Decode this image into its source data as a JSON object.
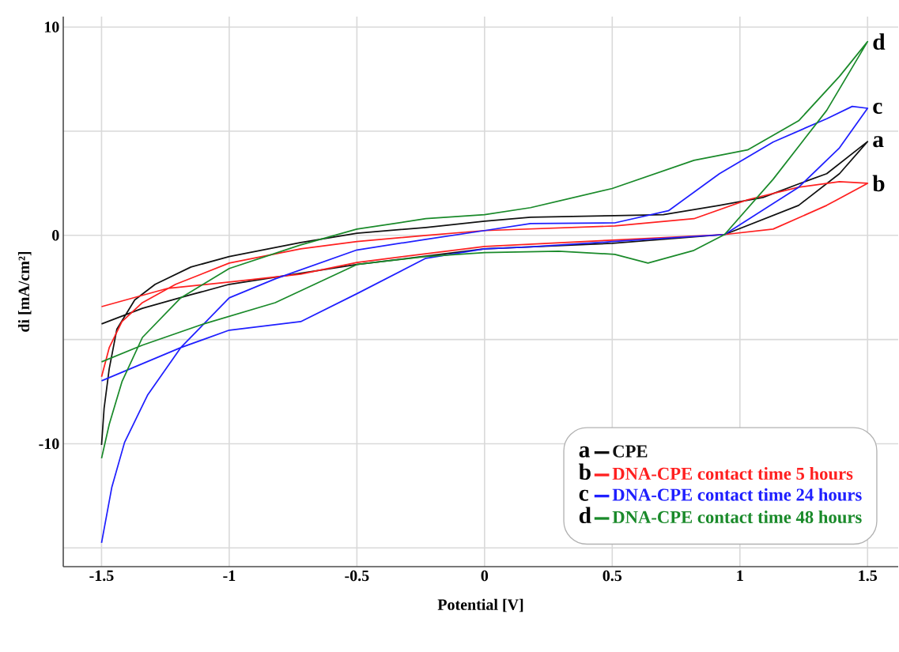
{
  "chart_data": {
    "type": "line",
    "xlabel": "Potential [V]",
    "ylabel": "di [mA/cm²]",
    "xlim": [
      -1.65,
      1.62
    ],
    "ylim": [
      -15.9,
      10.5
    ],
    "xticks": [
      -1.5,
      -1,
      -0.5,
      0,
      0.5,
      1,
      1.5
    ],
    "yticks": [
      {
        "value": -15,
        "label": null
      },
      -10,
      {
        "value": -5,
        "label": null
      },
      0,
      {
        "value": 5,
        "label": null
      },
      10
    ],
    "grid": true,
    "legend": "bottom right",
    "marker": "none",
    "line_style": "solid",
    "series": [
      {
        "name": "CPE",
        "color": "#111111",
        "x": [
          -1.5,
          -1.34,
          -1.15,
          -1,
          -0.5,
          0,
          0.5,
          0.94,
          1.23,
          1.39,
          1.5,
          1.34,
          1.23,
          1.09,
          0.92,
          0.7,
          0.51,
          0.18,
          0,
          -0.23,
          -0.5,
          -0.72,
          -1,
          -1.15,
          -1.29,
          -1.37,
          -1.44,
          -1.47,
          -1.49,
          -1.5
        ],
        "values": [
          -4.25,
          -3.5,
          -2.85,
          -2.35,
          -1.4,
          -0.65,
          -0.38,
          0.04,
          1.44,
          2.96,
          4.5,
          2.96,
          2.47,
          1.82,
          1.44,
          0.99,
          0.95,
          0.87,
          0.68,
          0.38,
          0.1,
          -0.34,
          -1.02,
          -1.52,
          -2.35,
          -3.1,
          -4.5,
          -6.4,
          -8.3,
          -10.06
        ]
      },
      {
        "name": "DNA-CPE contact time 5 hours",
        "color": "#ff2020",
        "x": [
          -1.5,
          -1.24,
          -1,
          -0.72,
          -0.5,
          0,
          0.5,
          0.94,
          1.13,
          1.34,
          1.5,
          1.39,
          1.23,
          1.03,
          0.82,
          0.51,
          0,
          -0.23,
          -0.5,
          -0.72,
          -1,
          -1.21,
          -1.34,
          -1.42,
          -1.47,
          -1.5
        ],
        "values": [
          -3.42,
          -2.54,
          -2.24,
          -1.86,
          -1.3,
          -0.53,
          -0.23,
          0.04,
          0.3,
          1.44,
          2.5,
          2.58,
          2.31,
          1.71,
          0.8,
          0.45,
          0.23,
          0,
          -0.3,
          -0.65,
          -1.33,
          -2.35,
          -3.23,
          -4.14,
          -5.39,
          -6.79
        ]
      },
      {
        "name": "DNA-CPE contact time 24 hours",
        "color": "#1f1fff",
        "x": [
          -1.5,
          -1.19,
          -1,
          -0.72,
          -0.5,
          -0.23,
          0,
          0.18,
          0.5,
          0.94,
          1.23,
          1.39,
          1.5,
          1.44,
          1.34,
          1.13,
          0.92,
          0.72,
          0.51,
          0.18,
          0,
          -0.23,
          -0.5,
          -0.82,
          -1,
          -1.19,
          -1.32,
          -1.41,
          -1.46,
          -1.5
        ],
        "values": [
          -6.98,
          -5.39,
          -4.55,
          -4.14,
          -2.8,
          -1.1,
          -0.65,
          -0.55,
          -0.3,
          0.04,
          2.31,
          4.2,
          6.1,
          6.19,
          5.6,
          4.48,
          2.96,
          1.18,
          0.6,
          0.57,
          0.23,
          -0.19,
          -0.7,
          -2.09,
          -3.0,
          -5.39,
          -7.67,
          -9.94,
          -12.1,
          -14.76
        ]
      },
      {
        "name": "DNA-CPE contact time 48 hours",
        "color": "#1a8a2a",
        "x": [
          -1.5,
          -1.34,
          -1.1,
          -0.82,
          -0.5,
          -0.23,
          0,
          0.29,
          0.51,
          0.64,
          0.82,
          0.94,
          1.13,
          1.34,
          1.5,
          1.39,
          1.23,
          1.03,
          0.82,
          0.5,
          0.18,
          0,
          -0.23,
          -0.5,
          -0.72,
          -1,
          -1.19,
          -1.34,
          -1.42,
          -1.47,
          -1.5
        ],
        "values": [
          -6.07,
          -5.27,
          -4.25,
          -3.23,
          -1.4,
          -1.02,
          -0.83,
          -0.76,
          -0.91,
          -1.33,
          -0.72,
          0.04,
          2.69,
          6.0,
          9.3,
          7.63,
          5.5,
          4.1,
          3.6,
          2.25,
          1.33,
          0.99,
          0.8,
          0.3,
          -0.46,
          -1.59,
          -3.0,
          -4.9,
          -7.02,
          -9.07,
          -10.7
        ]
      }
    ],
    "annotations": [
      "a",
      "b",
      "c",
      "d"
    ]
  }
}
